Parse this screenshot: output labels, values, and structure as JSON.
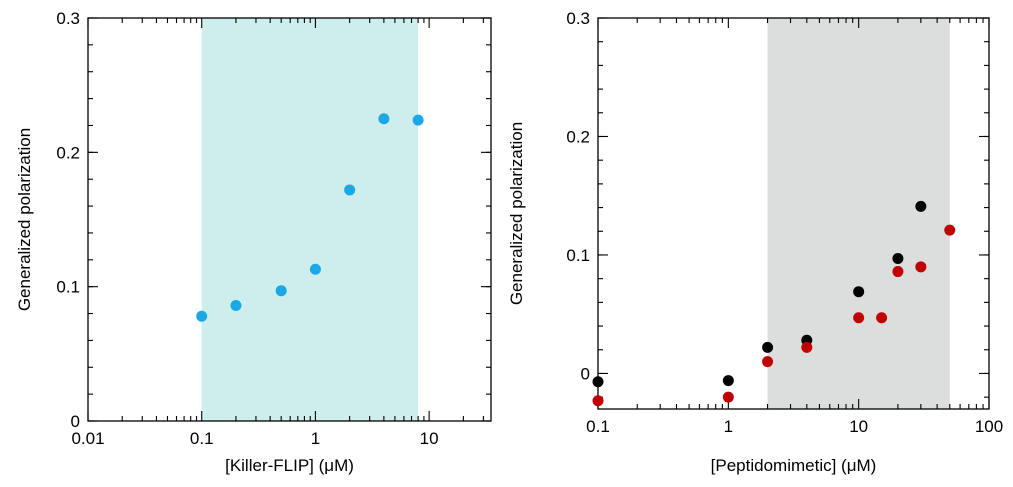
{
  "chart_data": [
    {
      "type": "scatter",
      "x_scale": "log",
      "xlabel": "[Killer-FLIP] (μM)",
      "ylabel": "Generalized polarization",
      "xlim": [
        0.01,
        35
      ],
      "ylim": [
        0,
        0.3
      ],
      "x_ticks": [
        {
          "value": 0.01,
          "label": "0.01"
        },
        {
          "value": 0.1,
          "label": "0.1"
        },
        {
          "value": 1,
          "label": "1"
        },
        {
          "value": 10,
          "label": "10"
        }
      ],
      "y_ticks": [
        {
          "value": 0,
          "label": "0"
        },
        {
          "value": 0.1,
          "label": "0.1"
        },
        {
          "value": 0.2,
          "label": "0.2"
        },
        {
          "value": 0.3,
          "label": "0.3"
        }
      ],
      "shaded_region": {
        "x_from": 0.1,
        "x_to": 8,
        "color": "#cdeeed"
      },
      "series": [
        {
          "color": "#1aa9e6",
          "x": [
            0.1,
            0.2,
            0.5,
            1,
            2,
            4,
            8
          ],
          "y": [
            0.078,
            0.086,
            0.097,
            0.113,
            0.172,
            0.225,
            0.224
          ]
        }
      ]
    },
    {
      "type": "scatter",
      "x_scale": "log",
      "xlabel": "[Peptidomimetic] (μM)",
      "ylabel": "Generalized polarization",
      "xlim": [
        0.1,
        100
      ],
      "ylim": [
        -0.03,
        0.3
      ],
      "x_ticks": [
        {
          "value": 0.1,
          "label": "0.1"
        },
        {
          "value": 1,
          "label": "1"
        },
        {
          "value": 10,
          "label": "10"
        },
        {
          "value": 100,
          "label": "100"
        }
      ],
      "y_ticks": [
        {
          "value": 0,
          "label": "0"
        },
        {
          "value": 0.1,
          "label": "0.1"
        },
        {
          "value": 0.2,
          "label": "0.2"
        },
        {
          "value": 0.3,
          "label": "0.3"
        }
      ],
      "shaded_region": {
        "x_from": 2,
        "x_to": 50,
        "color": "#dcdddd"
      },
      "series": [
        {
          "color": "#000000",
          "x": [
            0.1,
            1,
            2,
            4,
            10,
            20,
            30
          ],
          "y": [
            -0.007,
            -0.006,
            0.022,
            0.028,
            0.069,
            0.097,
            0.141
          ]
        },
        {
          "color": "#c00000",
          "x": [
            0.1,
            1,
            2,
            4,
            10,
            15,
            20,
            30,
            50
          ],
          "y": [
            -0.023,
            -0.02,
            0.01,
            0.022,
            0.047,
            0.047,
            0.086,
            0.09,
            0.121
          ]
        }
      ]
    }
  ]
}
